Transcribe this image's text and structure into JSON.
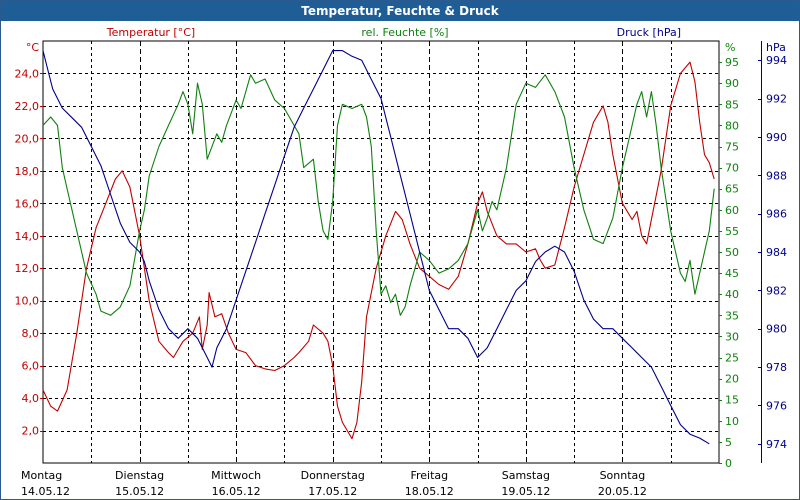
{
  "title": "Temperatur, Feuchte & Druck",
  "colors": {
    "temperature": "#c00000",
    "humidity": "#108010",
    "pressure": "#00008b",
    "title_bg": "#1f5d96",
    "grid": "#000000"
  },
  "chart_data": {
    "type": "line",
    "title": "Temperatur, Feuchte & Druck",
    "x_categories": [
      {
        "day": "Montag",
        "date": "14.05.12"
      },
      {
        "day": "Dienstag",
        "date": "15.05.12"
      },
      {
        "day": "Mittwoch",
        "date": "16.05.12"
      },
      {
        "day": "Donnerstag",
        "date": "17.05.12"
      },
      {
        "day": "Freitag",
        "date": "18.05.12"
      },
      {
        "day": "Samstag",
        "date": "19.05.12"
      },
      {
        "day": "Sonntag",
        "date": "20.05.12"
      }
    ],
    "x_range_days": [
      0,
      7
    ],
    "grid": true,
    "axes": {
      "temperature": {
        "unit_label": "°C",
        "legend_label": "Temperatur [°C]",
        "range": [
          0,
          26
        ],
        "ticks": [
          "2,0",
          "4,0",
          "6,0",
          "8,0",
          "10,0",
          "12,0",
          "14,0",
          "16,0",
          "18,0",
          "20,0",
          "22,0",
          "24,0"
        ],
        "tick_values": [
          2,
          4,
          6,
          8,
          10,
          12,
          14,
          16,
          18,
          20,
          22,
          24
        ]
      },
      "humidity": {
        "unit_label": "%",
        "legend_label": "rel. Feuchte [%]",
        "range": [
          0,
          100
        ],
        "ticks": [
          "0",
          "5",
          "10",
          "15",
          "20",
          "25",
          "30",
          "35",
          "40",
          "45",
          "50",
          "55",
          "60",
          "65",
          "70",
          "75",
          "80",
          "85",
          "90",
          "95"
        ],
        "tick_values": [
          0,
          5,
          10,
          15,
          20,
          25,
          30,
          35,
          40,
          45,
          50,
          55,
          60,
          65,
          70,
          75,
          80,
          85,
          90,
          95
        ]
      },
      "pressure": {
        "unit_label": "hPa",
        "legend_label": "Druck [hPa]",
        "range": [
          973,
          995
        ],
        "ticks": [
          "974",
          "976",
          "978",
          "980",
          "982",
          "984",
          "986",
          "988",
          "990",
          "992",
          "994"
        ],
        "tick_values": [
          974,
          976,
          978,
          980,
          982,
          984,
          986,
          988,
          990,
          992,
          994
        ]
      }
    },
    "series": [
      {
        "name": "Temperatur [°C]",
        "axis": "temperature",
        "points": [
          [
            0,
            4.5
          ],
          [
            0.08,
            3.5
          ],
          [
            0.15,
            3.2
          ],
          [
            0.25,
            4.5
          ],
          [
            0.35,
            8
          ],
          [
            0.45,
            12
          ],
          [
            0.55,
            14.5
          ],
          [
            0.65,
            16
          ],
          [
            0.75,
            17.5
          ],
          [
            0.82,
            18
          ],
          [
            0.9,
            17
          ],
          [
            1.0,
            14
          ],
          [
            1.1,
            10
          ],
          [
            1.2,
            7.5
          ],
          [
            1.3,
            6.8
          ],
          [
            1.35,
            6.5
          ],
          [
            1.45,
            7.5
          ],
          [
            1.55,
            8
          ],
          [
            1.62,
            9
          ],
          [
            1.65,
            7
          ],
          [
            1.7,
            8.5
          ],
          [
            1.72,
            10.5
          ],
          [
            1.78,
            9
          ],
          [
            1.85,
            9.2
          ],
          [
            1.92,
            8
          ],
          [
            2.0,
            7
          ],
          [
            2.1,
            6.8
          ],
          [
            2.2,
            6.0
          ],
          [
            2.3,
            5.8
          ],
          [
            2.4,
            5.7
          ],
          [
            2.5,
            6.0
          ],
          [
            2.6,
            6.5
          ],
          [
            2.65,
            6.8
          ],
          [
            2.75,
            7.5
          ],
          [
            2.8,
            8.5
          ],
          [
            2.9,
            8.0
          ],
          [
            2.95,
            7.5
          ],
          [
            3.0,
            6.0
          ],
          [
            3.05,
            3.5
          ],
          [
            3.1,
            2.5
          ],
          [
            3.15,
            2.0
          ],
          [
            3.2,
            1.5
          ],
          [
            3.25,
            2.5
          ],
          [
            3.3,
            5.0
          ],
          [
            3.35,
            9.0
          ],
          [
            3.45,
            12.0
          ],
          [
            3.55,
            14.0
          ],
          [
            3.65,
            15.5
          ],
          [
            3.72,
            15.0
          ],
          [
            3.8,
            13.5
          ],
          [
            3.9,
            12.0
          ],
          [
            4.0,
            11.5
          ],
          [
            4.1,
            11.0
          ],
          [
            4.2,
            10.7
          ],
          [
            4.3,
            11.5
          ],
          [
            4.4,
            13.5
          ],
          [
            4.5,
            16.0
          ],
          [
            4.55,
            16.7
          ],
          [
            4.6,
            15.5
          ],
          [
            4.7,
            14.0
          ],
          [
            4.8,
            13.5
          ],
          [
            4.9,
            13.5
          ],
          [
            5.0,
            13.0
          ],
          [
            5.1,
            13.2
          ],
          [
            5.15,
            12.5
          ],
          [
            5.2,
            12.0
          ],
          [
            5.3,
            12.2
          ],
          [
            5.4,
            14.5
          ],
          [
            5.5,
            17.0
          ],
          [
            5.6,
            19.0
          ],
          [
            5.7,
            21.0
          ],
          [
            5.8,
            22.0
          ],
          [
            5.85,
            21.0
          ],
          [
            5.9,
            19.0
          ],
          [
            6.0,
            16.0
          ],
          [
            6.1,
            15.0
          ],
          [
            6.15,
            15.5
          ],
          [
            6.2,
            14.0
          ],
          [
            6.25,
            13.5
          ],
          [
            6.3,
            15.0
          ],
          [
            6.4,
            18.0
          ],
          [
            6.5,
            22.0
          ],
          [
            6.6,
            24.0
          ],
          [
            6.7,
            24.7
          ],
          [
            6.75,
            23.5
          ],
          [
            6.8,
            21.0
          ],
          [
            6.85,
            19.0
          ],
          [
            6.9,
            18.5
          ],
          [
            6.95,
            17.5
          ]
        ]
      },
      {
        "name": "rel. Feuchte [%]",
        "axis": "humidity",
        "points": [
          [
            0,
            80
          ],
          [
            0.08,
            82
          ],
          [
            0.15,
            80
          ],
          [
            0.2,
            70
          ],
          [
            0.25,
            65
          ],
          [
            0.35,
            55
          ],
          [
            0.45,
            45
          ],
          [
            0.55,
            40
          ],
          [
            0.6,
            36
          ],
          [
            0.7,
            35
          ],
          [
            0.8,
            37
          ],
          [
            0.9,
            42
          ],
          [
            1.0,
            55
          ],
          [
            1.05,
            60
          ],
          [
            1.1,
            68
          ],
          [
            1.2,
            75
          ],
          [
            1.3,
            80
          ],
          [
            1.4,
            85
          ],
          [
            1.45,
            88
          ],
          [
            1.5,
            85
          ],
          [
            1.55,
            78
          ],
          [
            1.6,
            90
          ],
          [
            1.65,
            85
          ],
          [
            1.7,
            72
          ],
          [
            1.8,
            78
          ],
          [
            1.85,
            76
          ],
          [
            1.9,
            80
          ],
          [
            2.0,
            86
          ],
          [
            2.05,
            84
          ],
          [
            2.1,
            88
          ],
          [
            2.15,
            92
          ],
          [
            2.2,
            90
          ],
          [
            2.3,
            91
          ],
          [
            2.4,
            86
          ],
          [
            2.5,
            84
          ],
          [
            2.55,
            82
          ],
          [
            2.6,
            80
          ],
          [
            2.65,
            78
          ],
          [
            2.7,
            70
          ],
          [
            2.8,
            72
          ],
          [
            2.85,
            62
          ],
          [
            2.9,
            55
          ],
          [
            2.95,
            53
          ],
          [
            3.0,
            62
          ],
          [
            3.05,
            80
          ],
          [
            3.1,
            85
          ],
          [
            3.2,
            84
          ],
          [
            3.3,
            85
          ],
          [
            3.35,
            82
          ],
          [
            3.4,
            75
          ],
          [
            3.45,
            55
          ],
          [
            3.5,
            40
          ],
          [
            3.55,
            42
          ],
          [
            3.6,
            38
          ],
          [
            3.65,
            40
          ],
          [
            3.7,
            35
          ],
          [
            3.75,
            37
          ],
          [
            3.8,
            42
          ],
          [
            3.9,
            50
          ],
          [
            4.0,
            48
          ],
          [
            4.1,
            45
          ],
          [
            4.2,
            46
          ],
          [
            4.3,
            48
          ],
          [
            4.4,
            52
          ],
          [
            4.5,
            60
          ],
          [
            4.55,
            55
          ],
          [
            4.6,
            58
          ],
          [
            4.65,
            62
          ],
          [
            4.7,
            60
          ],
          [
            4.8,
            70
          ],
          [
            4.9,
            85
          ],
          [
            5.0,
            90
          ],
          [
            5.1,
            89
          ],
          [
            5.2,
            92
          ],
          [
            5.3,
            88
          ],
          [
            5.35,
            85
          ],
          [
            5.4,
            82
          ],
          [
            5.5,
            70
          ],
          [
            5.6,
            60
          ],
          [
            5.7,
            53
          ],
          [
            5.8,
            52
          ],
          [
            5.9,
            58
          ],
          [
            6.0,
            70
          ],
          [
            6.05,
            75
          ],
          [
            6.1,
            80
          ],
          [
            6.15,
            85
          ],
          [
            6.2,
            88
          ],
          [
            6.25,
            82
          ],
          [
            6.3,
            88
          ],
          [
            6.35,
            80
          ],
          [
            6.4,
            70
          ],
          [
            6.5,
            55
          ],
          [
            6.6,
            45
          ],
          [
            6.65,
            43
          ],
          [
            6.7,
            48
          ],
          [
            6.75,
            40
          ],
          [
            6.8,
            45
          ],
          [
            6.9,
            55
          ],
          [
            6.95,
            65
          ]
        ]
      },
      {
        "name": "Druck [hPa]",
        "axis": "pressure",
        "points": [
          [
            0,
            994.5
          ],
          [
            0.05,
            993.5
          ],
          [
            0.1,
            992.5
          ],
          [
            0.2,
            991.5
          ],
          [
            0.3,
            991
          ],
          [
            0.4,
            990.5
          ],
          [
            0.5,
            989.5
          ],
          [
            0.6,
            988.5
          ],
          [
            0.7,
            987
          ],
          [
            0.8,
            985.5
          ],
          [
            0.9,
            984.5
          ],
          [
            1.0,
            984
          ],
          [
            1.05,
            983.5
          ],
          [
            1.1,
            982.5
          ],
          [
            1.2,
            981
          ],
          [
            1.3,
            980
          ],
          [
            1.4,
            979.5
          ],
          [
            1.5,
            980
          ],
          [
            1.6,
            979.5
          ],
          [
            1.7,
            978.5
          ],
          [
            1.75,
            978
          ],
          [
            1.8,
            979
          ],
          [
            1.9,
            980
          ],
          [
            2.0,
            981.5
          ],
          [
            2.1,
            983
          ],
          [
            2.2,
            984.5
          ],
          [
            2.3,
            986
          ],
          [
            2.4,
            987.5
          ],
          [
            2.5,
            989
          ],
          [
            2.6,
            990.5
          ],
          [
            2.7,
            991.5
          ],
          [
            2.8,
            992.5
          ],
          [
            2.9,
            993.5
          ],
          [
            3.0,
            994.5
          ],
          [
            3.1,
            994.5
          ],
          [
            3.2,
            994.2
          ],
          [
            3.3,
            994
          ],
          [
            3.4,
            993
          ],
          [
            3.5,
            992
          ],
          [
            3.6,
            990
          ],
          [
            3.7,
            988
          ],
          [
            3.8,
            986
          ],
          [
            3.9,
            984
          ],
          [
            4.0,
            982
          ],
          [
            4.1,
            981
          ],
          [
            4.2,
            980
          ],
          [
            4.3,
            980
          ],
          [
            4.4,
            979.5
          ],
          [
            4.5,
            978.5
          ],
          [
            4.6,
            979
          ],
          [
            4.7,
            980
          ],
          [
            4.8,
            981
          ],
          [
            4.9,
            982
          ],
          [
            5.0,
            982.5
          ],
          [
            5.1,
            983.5
          ],
          [
            5.2,
            984
          ],
          [
            5.3,
            984.3
          ],
          [
            5.4,
            984
          ],
          [
            5.5,
            983
          ],
          [
            5.6,
            981.5
          ],
          [
            5.7,
            980.5
          ],
          [
            5.8,
            980
          ],
          [
            5.9,
            980
          ],
          [
            6.0,
            979.5
          ],
          [
            6.1,
            979
          ],
          [
            6.2,
            978.5
          ],
          [
            6.3,
            978
          ],
          [
            6.4,
            977
          ],
          [
            6.5,
            976
          ],
          [
            6.6,
            975
          ],
          [
            6.7,
            974.5
          ],
          [
            6.8,
            974.3
          ],
          [
            6.9,
            974
          ]
        ]
      }
    ]
  }
}
